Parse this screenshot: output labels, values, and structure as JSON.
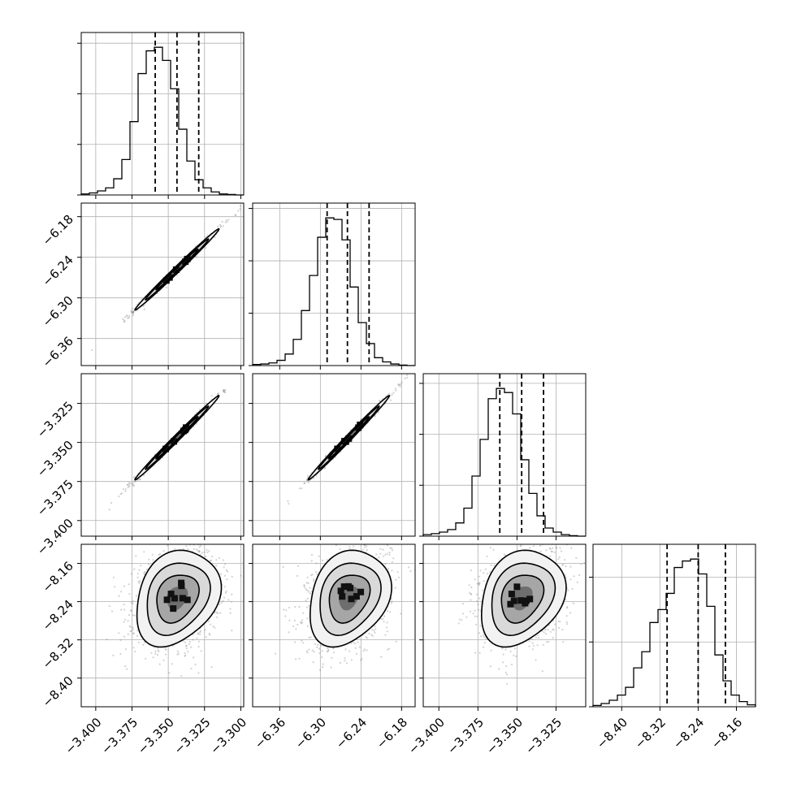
{
  "chart_data": {
    "type": "corner",
    "grid": true,
    "grid_color": "#b0b0b0",
    "ink_color": "#000000",
    "scatter_color": "#7f7f7f",
    "parameters": [
      {
        "name": "",
        "range": [
          -3.41,
          -3.298
        ],
        "ticks": [
          -3.4,
          -3.375,
          -3.35,
          -3.325,
          -3.3
        ],
        "tick_labels": [
          "−3.400",
          "−3.375",
          "−3.350",
          "−3.325",
          "−3.300"
        ],
        "quantiles": [
          -3.359,
          -3.344,
          -3.329
        ],
        "mean": -3.344,
        "sd": 0.0145
      },
      {
        "name": "",
        "range": [
          -6.4,
          -6.16
        ],
        "ticks": [
          -6.36,
          -6.3,
          -6.24,
          -6.18
        ],
        "tick_labels": [
          "−6.36",
          "−6.30",
          "−6.24",
          "−6.18"
        ],
        "quantiles": [
          -6.29,
          -6.26,
          -6.228
        ],
        "mean": -6.258,
        "sd": 0.03
      },
      {
        "name": "",
        "range": [
          -3.41,
          -3.306
        ],
        "ticks": [
          -3.4,
          -3.375,
          -3.35,
          -3.325
        ],
        "tick_labels": [
          "−3.400",
          "−3.375",
          "−3.350",
          "−3.325"
        ],
        "quantiles": [
          -3.361,
          -3.347,
          -3.333
        ],
        "mean": -3.347,
        "sd": 0.0135
      },
      {
        "name": "",
        "range": [
          -8.46,
          -8.12
        ],
        "ticks": [
          -8.4,
          -8.32,
          -8.24,
          -8.16
        ],
        "tick_labels": [
          "−8.40",
          "−8.32",
          "−8.24",
          "−8.16"
        ],
        "quantiles": [
          -8.305,
          -8.24,
          -8.183
        ],
        "mean": -8.232,
        "sd": 0.05
      }
    ],
    "histograms": [
      {
        "bins": 20,
        "counts": [
          2,
          4,
          8,
          14,
          32,
          70,
          145,
          240,
          285,
          292,
          266,
          210,
          130,
          67,
          30,
          14,
          6,
          2,
          1,
          0
        ]
      },
      {
        "bins": 20,
        "counts": [
          2,
          3,
          5,
          10,
          22,
          50,
          105,
          172,
          245,
          282,
          279,
          240,
          150,
          82,
          42,
          15,
          7,
          3,
          1,
          0
        ]
      },
      {
        "bins": 20,
        "counts": [
          3,
          5,
          8,
          13,
          26,
          55,
          118,
          190,
          270,
          290,
          282,
          240,
          150,
          84,
          40,
          16,
          8,
          3,
          1,
          0
        ]
      },
      {
        "bins": 20,
        "counts": [
          2,
          5,
          10,
          18,
          30,
          60,
          85,
          130,
          150,
          175,
          215,
          225,
          228,
          205,
          155,
          80,
          40,
          18,
          8,
          3
        ]
      }
    ],
    "correlations": [
      [
        1.0,
        0.995,
        0.995,
        0.25
      ],
      [
        0.995,
        1.0,
        0.995,
        0.25
      ],
      [
        0.995,
        0.995,
        1.0,
        0.25
      ],
      [
        0.25,
        0.25,
        0.25,
        1.0
      ]
    ],
    "contour_levels_sigma": [
      0.5,
      1.0,
      1.5,
      2.0
    ]
  }
}
